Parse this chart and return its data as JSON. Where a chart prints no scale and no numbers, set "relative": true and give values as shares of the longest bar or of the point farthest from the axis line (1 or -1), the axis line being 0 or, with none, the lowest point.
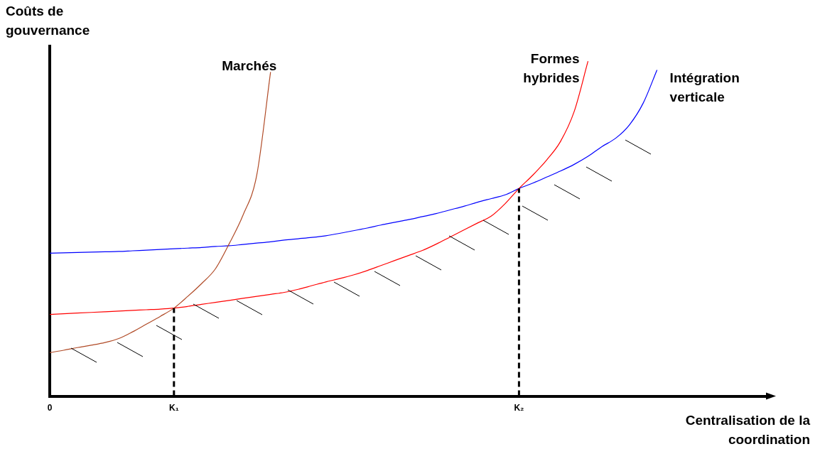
{
  "chart_data": {
    "type": "line",
    "relative": true,
    "xlabel": "Centralisation de la coordination",
    "ylabel": "Coûts de gouvernance",
    "grid": false,
    "legend": false,
    "marker": "none",
    "line_style": "solid",
    "categories": [
      "0",
      null,
      null,
      null,
      null,
      null,
      null,
      null,
      null,
      "K₁",
      null,
      null,
      null,
      null,
      null,
      null,
      null,
      null,
      null,
      null,
      null,
      null,
      null,
      null,
      null,
      null,
      null,
      null,
      null,
      null,
      null,
      null,
      null,
      null,
      "K₂",
      null,
      null,
      null,
      null,
      null,
      null,
      null,
      null,
      null,
      null,
      null,
      null,
      null,
      null,
      null,
      null,
      null,
      null
    ],
    "series": [
      {
        "name": "Marchés",
        "color": "#b04a26",
        "values": [
          0.13,
          0.137,
          0.145,
          0.152,
          0.16,
          0.172,
          0.192,
          0.215,
          0.238,
          0.263,
          0.298,
          0.336,
          0.38,
          0.455,
          0.54,
          0.66,
          0.968,
          null,
          null,
          null,
          null,
          null,
          null,
          null,
          null,
          null,
          null,
          null,
          null,
          null,
          null,
          null,
          null,
          null,
          null,
          null,
          null,
          null,
          null,
          null,
          null,
          null,
          null,
          null,
          null,
          null,
          null,
          null,
          null,
          null,
          null,
          null,
          null
        ]
      },
      {
        "name": "Formes hybrides",
        "color": "#ff0000",
        "values": [
          0.244,
          0.246,
          0.248,
          0.25,
          0.252,
          0.254,
          0.256,
          0.258,
          0.26,
          0.263,
          0.268,
          0.274,
          0.28,
          0.286,
          0.292,
          0.298,
          0.304,
          0.31,
          0.319,
          0.33,
          0.341,
          0.351,
          0.362,
          0.375,
          0.39,
          0.405,
          0.42,
          0.435,
          0.454,
          0.475,
          0.496,
          0.517,
          0.538,
          0.575,
          0.62,
          0.66,
          0.705,
          0.76,
          0.85,
          1,
          null,
          null,
          null,
          null,
          null,
          null,
          null,
          null,
          null,
          null,
          null,
          null,
          null
        ]
      },
      {
        "name": "Intégration verticale",
        "color": "#0000ff",
        "values": [
          0.427,
          0.428,
          0.429,
          0.43,
          0.431,
          0.432,
          0.434,
          0.436,
          0.438,
          0.44,
          0.442,
          0.444,
          0.447,
          0.449,
          0.453,
          0.457,
          0.461,
          0.466,
          0.47,
          0.474,
          0.479,
          0.486,
          0.494,
          0.502,
          0.511,
          0.519,
          0.527,
          0.536,
          0.545,
          0.556,
          0.567,
          0.579,
          0.59,
          0.601,
          0.62,
          0.636,
          0.654,
          0.672,
          0.692,
          0.716,
          0.745,
          0.77,
          0.81,
          0.875,
          0.974,
          null,
          null,
          null,
          null,
          null,
          null,
          null,
          null
        ]
      }
    ],
    "ref_lines": [
      {
        "axis": "x",
        "value": "K₁",
        "color": "#000000",
        "line_style": "dashed"
      },
      {
        "axis": "x",
        "value": "K₂",
        "color": "#000000",
        "line_style": "dashed"
      }
    ]
  }
}
